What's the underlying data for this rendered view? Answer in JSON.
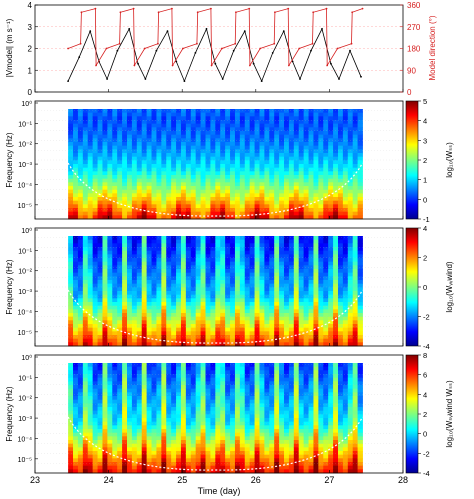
{
  "chart_data": [
    {
      "type": "line",
      "panel": "speed-direction",
      "ylabel_left": "|Vmodel| (m s⁻¹)",
      "ylabel_right": "Model direction (°)",
      "left_ylim": [
        0,
        4
      ],
      "left_yticks": [
        "0",
        "1",
        "2",
        "3",
        "4"
      ],
      "right_ylim": [
        0,
        360
      ],
      "right_yticks": [
        "0",
        "90",
        "180",
        "270",
        "360"
      ],
      "xlim": [
        23,
        28
      ],
      "right_axis_color": "#d62020",
      "series": [
        {
          "color": "#000000",
          "axis": "left",
          "x": [
            23.45,
            23.6,
            23.75,
            23.87,
            23.98,
            24.12,
            24.28,
            24.4,
            24.5,
            24.65,
            24.8,
            24.92,
            25.03,
            25.18,
            25.33,
            25.45,
            25.55,
            25.7,
            25.85,
            25.97,
            26.08,
            26.23,
            26.38,
            26.5,
            26.6,
            26.75,
            26.9,
            27.02,
            27.13,
            27.28,
            27.43
          ],
          "y": [
            0.5,
            1.6,
            2.8,
            1.4,
            0.6,
            1.9,
            2.9,
            1.3,
            0.6,
            1.9,
            2.8,
            1.4,
            0.5,
            1.8,
            2.9,
            1.3,
            0.6,
            1.9,
            2.8,
            1.3,
            0.5,
            1.8,
            2.8,
            1.4,
            0.6,
            1.9,
            2.9,
            1.3,
            0.6,
            1.9,
            0.7
          ]
        },
        {
          "color": "#d62020",
          "axis": "right",
          "x": [
            23.45,
            23.62,
            23.63,
            23.82,
            23.83,
            23.97,
            24.15,
            24.16,
            24.34,
            24.35,
            24.49,
            24.67,
            24.68,
            24.86,
            24.87,
            25.01,
            25.2,
            25.21,
            25.39,
            25.4,
            25.54,
            25.72,
            25.73,
            25.91,
            25.92,
            26.06,
            26.25,
            26.26,
            26.44,
            26.45,
            26.59,
            26.77,
            26.78,
            26.96,
            26.97,
            27.11,
            27.3,
            27.31,
            27.45
          ],
          "y": [
            180,
            200,
            330,
            345,
            110,
            180,
            200,
            330,
            345,
            110,
            180,
            200,
            330,
            345,
            110,
            180,
            200,
            330,
            345,
            110,
            180,
            200,
            330,
            345,
            110,
            180,
            200,
            330,
            345,
            110,
            180,
            200,
            330,
            345,
            110,
            180,
            200,
            330,
            345
          ]
        }
      ]
    },
    {
      "type": "heatmap",
      "panel": "wavelet-Ws",
      "ylabel": "Frequency (Hz)",
      "colorbar_label": "log₁₀(Wₛₛ)",
      "colorbar_range": [
        -1,
        5
      ],
      "colorbar_ticks": [
        "5",
        "4",
        "3",
        "2",
        "1",
        "0",
        "-1"
      ],
      "yticks": [
        "10⁰",
        "10⁻¹",
        "10⁻²",
        "10⁻³",
        "10⁻⁴",
        "10⁻⁵"
      ],
      "data_xrange": [
        23.45,
        27.45
      ]
    },
    {
      "type": "heatmap",
      "panel": "wavelet-Wwind",
      "ylabel": "Frequency (Hz)",
      "colorbar_label": "log₁₀(Wᵥᵥwind)",
      "colorbar_range": [
        -4,
        4
      ],
      "colorbar_ticks": [
        "4",
        "2",
        "0",
        "-2",
        "-4"
      ],
      "yticks": [
        "10⁰",
        "10⁻¹",
        "10⁻²",
        "10⁻³",
        "10⁻⁴",
        "10⁻⁵"
      ],
      "data_xrange": [
        23.45,
        27.45
      ]
    },
    {
      "type": "heatmap",
      "panel": "wavelet-cross",
      "ylabel": "Frequency (Hz)",
      "colorbar_label": "log₁₀(Wₛᵥwind Wₛₛ)",
      "colorbar_range": [
        -4,
        8
      ],
      "colorbar_ticks": [
        "8",
        "6",
        "4",
        "2",
        "0",
        "-2",
        "-4"
      ],
      "yticks": [
        "10⁰",
        "10⁻¹",
        "10⁻²",
        "10⁻³",
        "10⁻⁴",
        "10⁻⁵"
      ],
      "data_xrange": [
        23.45,
        27.45
      ]
    }
  ],
  "xaxis": {
    "label": "Time (day)",
    "ticks": [
      "23",
      "24",
      "25",
      "26",
      "27",
      "28"
    ],
    "range": [
      23,
      28
    ]
  }
}
